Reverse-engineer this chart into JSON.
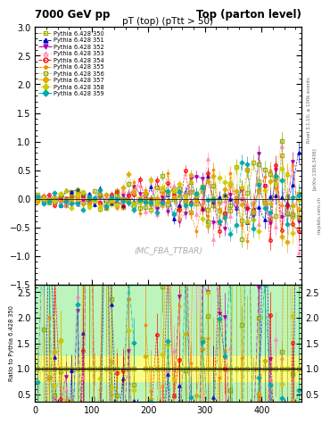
{
  "title_left": "7000 GeV pp",
  "title_right": "Top (parton level)",
  "main_title": "pT (top) (pTtt > 50)",
  "watermark": "(MC_FBA_TTBAR)",
  "ylabel_ratio": "Ratio to Pythia 6.428 350",
  "rivet_label": "Rivet 3.1.10, ≥ 100k events",
  "arxiv_label": "[arXiv:1306.3436]",
  "mcplots_label": "mcplots.cern.ch",
  "xlim": [
    0,
    470
  ],
  "ylim_main": [
    -1.5,
    3.0
  ],
  "ylim_ratio": [
    0.35,
    2.65
  ],
  "yticks_main": [
    -1.5,
    -1.0,
    -0.5,
    0.0,
    0.5,
    1.0,
    1.5,
    2.0,
    2.5,
    3.0
  ],
  "yticks_ratio": [
    0.5,
    1.0,
    1.5,
    2.0,
    2.5
  ],
  "xticks": [
    0,
    100,
    200,
    300,
    400
  ],
  "series": [
    {
      "label": "Pythia 6.428 350",
      "color": "#aaaa00",
      "marker": "s",
      "ls": "--",
      "filled": false
    },
    {
      "label": "Pythia 6.428 351",
      "color": "#0000cc",
      "marker": "^",
      "ls": "--",
      "filled": true
    },
    {
      "label": "Pythia 6.428 352",
      "color": "#aa00aa",
      "marker": "v",
      "ls": "-.",
      "filled": true
    },
    {
      "label": "Pythia 6.428 353",
      "color": "#ff88bb",
      "marker": "^",
      "ls": ":",
      "filled": false
    },
    {
      "label": "Pythia 6.428 354",
      "color": "#ff0000",
      "marker": "o",
      "ls": "--",
      "filled": false
    },
    {
      "label": "Pythia 6.428 355",
      "color": "#ff8800",
      "marker": "*",
      "ls": "--",
      "filled": true
    },
    {
      "label": "Pythia 6.428 356",
      "color": "#88aa00",
      "marker": "s",
      "ls": ":",
      "filled": false
    },
    {
      "label": "Pythia 6.428 357",
      "color": "#ddaa00",
      "marker": "D",
      "ls": "--",
      "filled": true
    },
    {
      "label": "Pythia 6.428 358",
      "color": "#cccc00",
      "marker": "D",
      "ls": ":",
      "filled": true
    },
    {
      "label": "Pythia 6.428 359",
      "color": "#00aaaa",
      "marker": "D",
      "ls": "-.",
      "filled": true
    }
  ],
  "background_color": "#ffffff"
}
